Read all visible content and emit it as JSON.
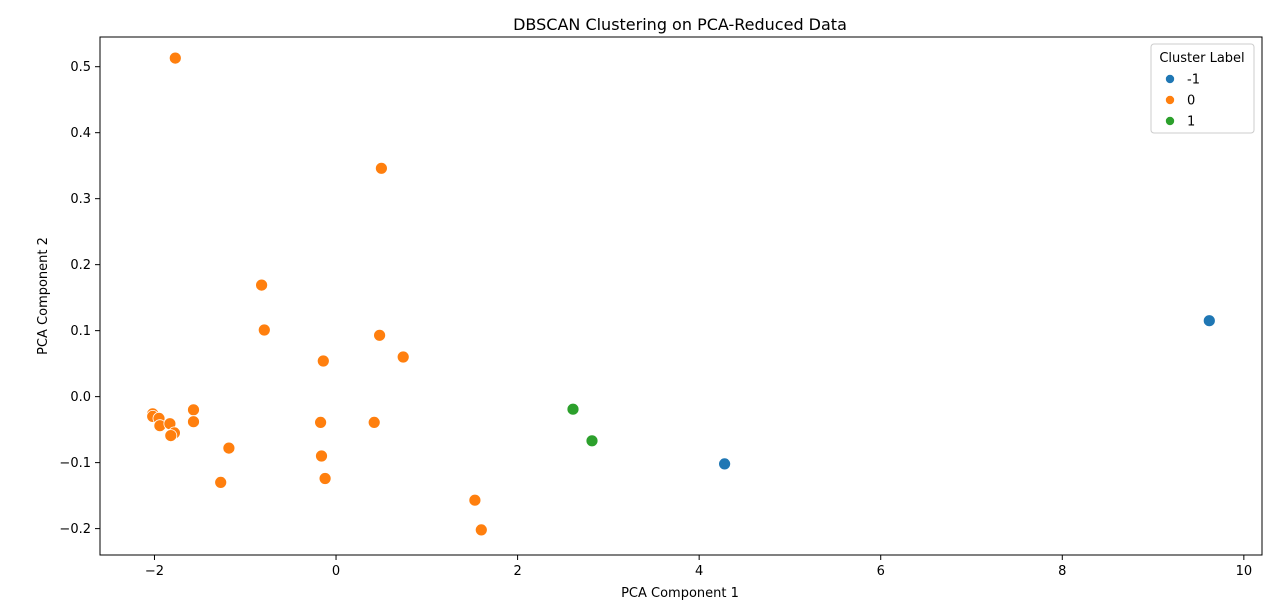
{
  "chart_data": {
    "type": "scatter",
    "title": "DBSCAN Clustering on PCA-Reduced Data",
    "xlabel": "PCA Component 1",
    "ylabel": "PCA Component 2",
    "xlim": [
      -2.6,
      10.2
    ],
    "ylim": [
      -0.24,
      0.545
    ],
    "xticks": [
      -2,
      0,
      2,
      4,
      6,
      8,
      10
    ],
    "yticks": [
      -0.2,
      -0.1,
      0.0,
      0.1,
      0.2,
      0.3,
      0.4,
      0.5
    ],
    "ytick_labels": [
      "−0.2",
      "−0.1",
      "0.0",
      "0.1",
      "0.2",
      "0.3",
      "0.4",
      "0.5"
    ],
    "xtick_labels": [
      "−2",
      "0",
      "2",
      "4",
      "6",
      "8",
      "10"
    ],
    "grid": false,
    "legend": {
      "title": "Cluster Label",
      "placement": "top-right"
    },
    "series": [
      {
        "name": "-1",
        "color": "#1f77b4",
        "points": [
          [
            9.62,
            0.115
          ],
          [
            4.28,
            -0.102
          ]
        ]
      },
      {
        "name": "0",
        "color": "#ff7f0e",
        "points": [
          [
            -1.77,
            0.513
          ],
          [
            0.5,
            0.346
          ],
          [
            -0.82,
            0.169
          ],
          [
            -0.79,
            0.101
          ],
          [
            0.48,
            0.093
          ],
          [
            -0.14,
            0.054
          ],
          [
            0.74,
            0.06
          ],
          [
            -2.02,
            -0.026
          ],
          [
            -2.02,
            -0.03
          ],
          [
            -1.95,
            -0.033
          ],
          [
            -1.94,
            -0.044
          ],
          [
            -1.83,
            -0.041
          ],
          [
            -1.78,
            -0.055
          ],
          [
            -1.82,
            -0.059
          ],
          [
            -1.57,
            -0.02
          ],
          [
            -1.57,
            -0.038
          ],
          [
            -1.18,
            -0.078
          ],
          [
            -1.27,
            -0.13
          ],
          [
            -0.17,
            -0.039
          ],
          [
            0.42,
            -0.039
          ],
          [
            -0.16,
            -0.09
          ],
          [
            -0.12,
            -0.124
          ],
          [
            1.53,
            -0.157
          ],
          [
            1.6,
            -0.202
          ]
        ]
      },
      {
        "name": "1",
        "color": "#2ca02c",
        "points": [
          [
            2.61,
            -0.019
          ],
          [
            2.82,
            -0.067
          ]
        ]
      }
    ]
  }
}
